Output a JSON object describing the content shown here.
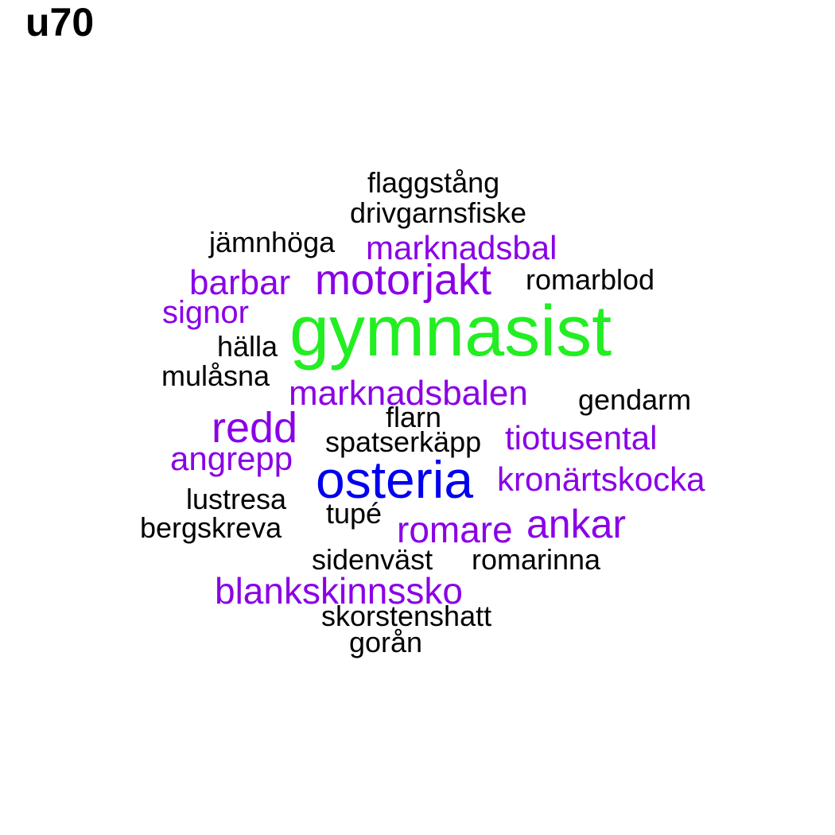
{
  "title": "u70",
  "colors": {
    "black": "#000000",
    "purple": "#8a00e6",
    "blue": "#0000ee",
    "green": "#22ee22"
  },
  "words": [
    {
      "text": "flaggstång",
      "color": "black"
    },
    {
      "text": "drivgarnsfiske",
      "color": "black"
    },
    {
      "text": "jämnhöga",
      "color": "black"
    },
    {
      "text": "marknadsbal",
      "color": "purple"
    },
    {
      "text": "barbar",
      "color": "purple"
    },
    {
      "text": "motorjakt",
      "color": "purple"
    },
    {
      "text": "romarblod",
      "color": "black"
    },
    {
      "text": "signor",
      "color": "purple"
    },
    {
      "text": "gymnasist",
      "color": "green"
    },
    {
      "text": "hälla",
      "color": "black"
    },
    {
      "text": "mulåsna",
      "color": "black"
    },
    {
      "text": "marknadsbalen",
      "color": "purple"
    },
    {
      "text": "gendarm",
      "color": "black"
    },
    {
      "text": "redd",
      "color": "purple"
    },
    {
      "text": "flarn",
      "color": "black"
    },
    {
      "text": "spatserkäpp",
      "color": "black"
    },
    {
      "text": "tiotusental",
      "color": "purple"
    },
    {
      "text": "angrepp",
      "color": "purple"
    },
    {
      "text": "osteria",
      "color": "blue"
    },
    {
      "text": "kronärtskocka",
      "color": "purple"
    },
    {
      "text": "lustresa",
      "color": "black"
    },
    {
      "text": "tupé",
      "color": "black"
    },
    {
      "text": "bergskreva",
      "color": "black"
    },
    {
      "text": "romare",
      "color": "purple"
    },
    {
      "text": "ankar",
      "color": "purple"
    },
    {
      "text": "sidenväst",
      "color": "black"
    },
    {
      "text": "romarinna",
      "color": "black"
    },
    {
      "text": "blankskinnssko",
      "color": "purple"
    },
    {
      "text": "skorstenshatt",
      "color": "black"
    },
    {
      "text": "gorån",
      "color": "black"
    }
  ]
}
